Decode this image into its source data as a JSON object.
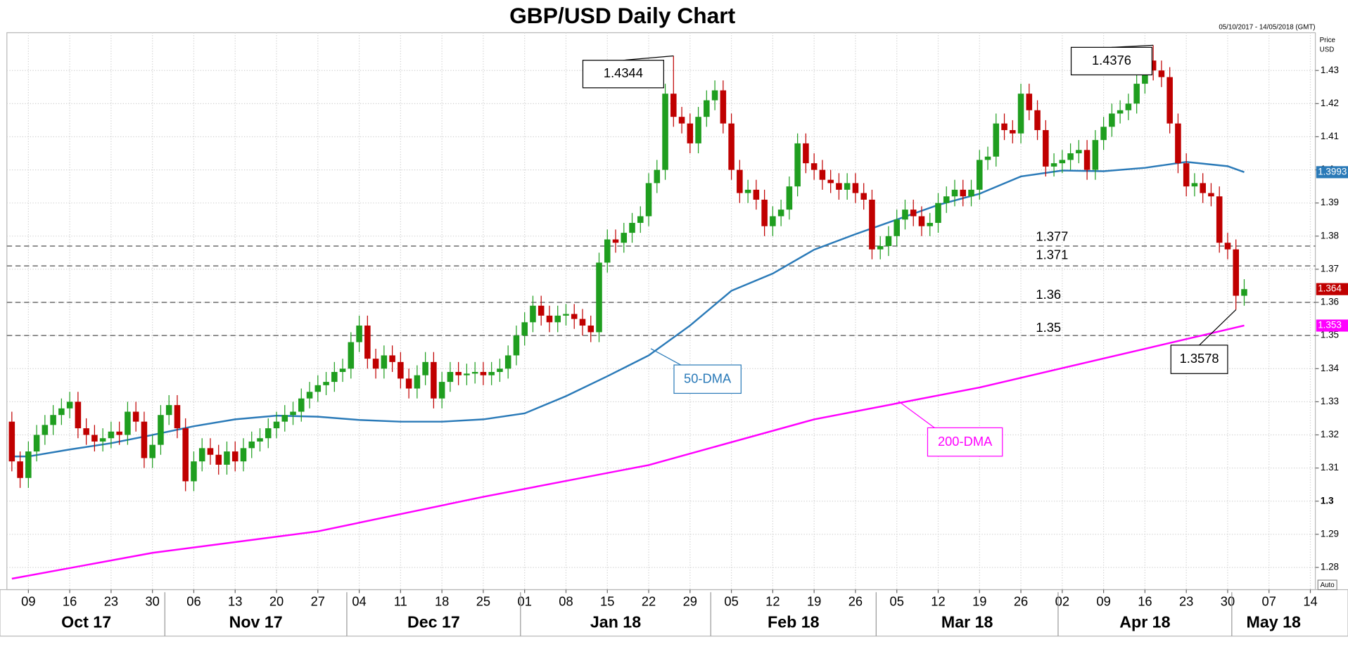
{
  "chart_data": {
    "type": "candlestick",
    "title": "GBP/USD Daily Chart",
    "range_label": "05/10/2017 - 14/05/2018 (GMT)",
    "y_axis_label": [
      "Price",
      "USD"
    ],
    "scale_label": "Auto",
    "up_color": "#1f9e1f",
    "down_color": "#c00000",
    "dates": [
      "2017-10-05",
      "2017-10-06",
      "2017-10-09",
      "2017-10-10",
      "2017-10-11",
      "2017-10-12",
      "2017-10-13",
      "2017-10-16",
      "2017-10-17",
      "2017-10-18",
      "2017-10-19",
      "2017-10-20",
      "2017-10-23",
      "2017-10-24",
      "2017-10-25",
      "2017-10-26",
      "2017-10-27",
      "2017-10-30",
      "2017-10-31",
      "2017-11-01",
      "2017-11-02",
      "2017-11-03",
      "2017-11-06",
      "2017-11-07",
      "2017-11-08",
      "2017-11-09",
      "2017-11-10",
      "2017-11-13",
      "2017-11-14",
      "2017-11-15",
      "2017-11-16",
      "2017-11-17",
      "2017-11-20",
      "2017-11-21",
      "2017-11-22",
      "2017-11-23",
      "2017-11-24",
      "2017-11-27",
      "2017-11-28",
      "2017-11-29",
      "2017-11-30",
      "2017-12-01",
      "2017-12-04",
      "2017-12-05",
      "2017-12-06",
      "2017-12-07",
      "2017-12-08",
      "2017-12-11",
      "2017-12-12",
      "2017-12-13",
      "2017-12-14",
      "2017-12-15",
      "2017-12-18",
      "2017-12-19",
      "2017-12-20",
      "2017-12-21",
      "2017-12-22",
      "2017-12-25",
      "2017-12-26",
      "2017-12-27",
      "2017-12-28",
      "2017-12-29",
      "2018-01-01",
      "2018-01-02",
      "2018-01-03",
      "2018-01-04",
      "2018-01-05",
      "2018-01-08",
      "2018-01-09",
      "2018-01-10",
      "2018-01-11",
      "2018-01-12",
      "2018-01-15",
      "2018-01-16",
      "2018-01-17",
      "2018-01-18",
      "2018-01-19",
      "2018-01-22",
      "2018-01-23",
      "2018-01-24",
      "2018-01-25",
      "2018-01-26",
      "2018-01-29",
      "2018-01-30",
      "2018-01-31",
      "2018-02-01",
      "2018-02-02",
      "2018-02-05",
      "2018-02-06",
      "2018-02-07",
      "2018-02-08",
      "2018-02-09",
      "2018-02-12",
      "2018-02-13",
      "2018-02-14",
      "2018-02-15",
      "2018-02-16",
      "2018-02-19",
      "2018-02-20",
      "2018-02-21",
      "2018-02-22",
      "2018-02-23",
      "2018-02-26",
      "2018-02-27",
      "2018-02-28",
      "2018-03-01",
      "2018-03-02",
      "2018-03-05",
      "2018-03-06",
      "2018-03-07",
      "2018-03-08",
      "2018-03-09",
      "2018-03-12",
      "2018-03-13",
      "2018-03-14",
      "2018-03-15",
      "2018-03-16",
      "2018-03-19",
      "2018-03-20",
      "2018-03-21",
      "2018-03-22",
      "2018-03-23",
      "2018-03-26",
      "2018-03-27",
      "2018-03-28",
      "2018-03-29",
      "2018-03-30",
      "2018-04-02",
      "2018-04-03",
      "2018-04-04",
      "2018-04-05",
      "2018-04-06",
      "2018-04-09",
      "2018-04-10",
      "2018-04-11",
      "2018-04-12",
      "2018-04-13",
      "2018-04-16",
      "2018-04-17",
      "2018-04-18",
      "2018-04-19",
      "2018-04-20",
      "2018-04-23",
      "2018-04-24",
      "2018-04-25",
      "2018-04-26",
      "2018-04-27",
      "2018-04-30",
      "2018-05-01",
      "2018-05-02"
    ],
    "open": [
      1.324,
      1.312,
      1.307,
      1.315,
      1.32,
      1.323,
      1.326,
      1.328,
      1.33,
      1.322,
      1.32,
      1.318,
      1.319,
      1.321,
      1.32,
      1.327,
      1.324,
      1.313,
      1.317,
      1.326,
      1.329,
      1.322,
      1.306,
      1.312,
      1.316,
      1.314,
      1.311,
      1.315,
      1.312,
      1.316,
      1.318,
      1.319,
      1.322,
      1.324,
      1.326,
      1.327,
      1.331,
      1.333,
      1.335,
      1.336,
      1.339,
      1.34,
      1.348,
      1.353,
      1.343,
      1.34,
      1.344,
      1.342,
      1.337,
      1.334,
      1.338,
      1.342,
      1.331,
      1.336,
      1.339,
      1.338,
      1.3385,
      1.339,
      1.338,
      1.339,
      1.34,
      1.344,
      1.35,
      1.354,
      1.359,
      1.356,
      1.354,
      1.356,
      1.3565,
      1.355,
      1.353,
      1.351,
      1.372,
      1.379,
      1.378,
      1.381,
      1.384,
      1.386,
      1.396,
      1.4,
      1.423,
      1.416,
      1.414,
      1.408,
      1.416,
      1.421,
      1.424,
      1.414,
      1.4,
      1.393,
      1.394,
      1.391,
      1.383,
      1.386,
      1.388,
      1.395,
      1.408,
      1.402,
      1.4,
      1.397,
      1.396,
      1.394,
      1.396,
      1.393,
      1.391,
      1.376,
      1.377,
      1.38,
      1.385,
      1.388,
      1.386,
      1.383,
      1.384,
      1.39,
      1.392,
      1.394,
      1.392,
      1.394,
      1.403,
      1.404,
      1.414,
      1.412,
      1.411,
      1.423,
      1.418,
      1.412,
      1.401,
      1.402,
      1.403,
      1.405,
      1.406,
      1.4,
      1.409,
      1.413,
      1.417,
      1.418,
      1.42,
      1.426,
      1.433,
      1.43,
      1.428,
      1.414,
      1.402,
      1.395,
      1.396,
      1.393,
      1.392,
      1.378,
      1.376,
      1.362
    ],
    "high": [
      1.327,
      1.315,
      1.318,
      1.323,
      1.326,
      1.329,
      1.331,
      1.333,
      1.333,
      1.325,
      1.323,
      1.322,
      1.324,
      1.324,
      1.33,
      1.33,
      1.327,
      1.32,
      1.329,
      1.332,
      1.332,
      1.325,
      1.315,
      1.319,
      1.319,
      1.317,
      1.318,
      1.318,
      1.319,
      1.321,
      1.322,
      1.325,
      1.327,
      1.329,
      1.33,
      1.334,
      1.336,
      1.338,
      1.339,
      1.342,
      1.343,
      1.351,
      1.356,
      1.356,
      1.346,
      1.347,
      1.347,
      1.345,
      1.34,
      1.341,
      1.345,
      1.345,
      1.339,
      1.342,
      1.342,
      1.3415,
      1.342,
      1.342,
      1.342,
      1.343,
      1.347,
      1.353,
      1.357,
      1.362,
      1.362,
      1.359,
      1.359,
      1.3595,
      1.3595,
      1.358,
      1.356,
      1.375,
      1.382,
      1.382,
      1.384,
      1.387,
      1.389,
      1.399,
      1.403,
      1.426,
      1.4344,
      1.419,
      1.417,
      1.419,
      1.424,
      1.427,
      1.427,
      1.417,
      1.403,
      1.397,
      1.397,
      1.394,
      1.389,
      1.391,
      1.398,
      1.411,
      1.411,
      1.405,
      1.403,
      1.4,
      1.399,
      1.399,
      1.399,
      1.396,
      1.394,
      1.38,
      1.383,
      1.388,
      1.391,
      1.391,
      1.389,
      1.387,
      1.393,
      1.395,
      1.397,
      1.397,
      1.397,
      1.406,
      1.407,
      1.417,
      1.417,
      1.415,
      1.426,
      1.426,
      1.421,
      1.415,
      1.405,
      1.406,
      1.408,
      1.409,
      1.409,
      1.412,
      1.416,
      1.42,
      1.421,
      1.423,
      1.429,
      1.436,
      1.4376,
      1.433,
      1.431,
      1.417,
      1.405,
      1.399,
      1.399,
      1.396,
      1.395,
      1.381,
      1.379,
      1.367
    ],
    "low": [
      1.309,
      1.304,
      1.304,
      1.312,
      1.317,
      1.32,
      1.323,
      1.325,
      1.319,
      1.317,
      1.315,
      1.315,
      1.316,
      1.317,
      1.317,
      1.321,
      1.31,
      1.31,
      1.314,
      1.323,
      1.319,
      1.303,
      1.303,
      1.309,
      1.311,
      1.308,
      1.308,
      1.309,
      1.309,
      1.313,
      1.315,
      1.316,
      1.319,
      1.321,
      1.323,
      1.324,
      1.328,
      1.33,
      1.332,
      1.333,
      1.336,
      1.337,
      1.345,
      1.34,
      1.337,
      1.337,
      1.339,
      1.334,
      1.331,
      1.331,
      1.335,
      1.328,
      1.328,
      1.333,
      1.335,
      1.335,
      1.3355,
      1.335,
      1.335,
      1.336,
      1.337,
      1.341,
      1.347,
      1.351,
      1.353,
      1.351,
      1.351,
      1.353,
      1.352,
      1.35,
      1.348,
      1.348,
      1.369,
      1.375,
      1.375,
      1.378,
      1.381,
      1.383,
      1.393,
      1.397,
      1.413,
      1.411,
      1.405,
      1.405,
      1.413,
      1.418,
      1.411,
      1.397,
      1.39,
      1.39,
      1.388,
      1.38,
      1.38,
      1.383,
      1.385,
      1.392,
      1.399,
      1.397,
      1.394,
      1.393,
      1.391,
      1.391,
      1.39,
      1.388,
      1.373,
      1.373,
      1.374,
      1.377,
      1.382,
      1.383,
      1.38,
      1.38,
      1.381,
      1.387,
      1.389,
      1.389,
      1.389,
      1.391,
      1.4,
      1.401,
      1.409,
      1.408,
      1.408,
      1.415,
      1.409,
      1.398,
      1.398,
      1.399,
      1.4,
      1.402,
      1.397,
      1.397,
      1.406,
      1.41,
      1.414,
      1.415,
      1.417,
      1.423,
      1.427,
      1.425,
      1.411,
      1.399,
      1.392,
      1.392,
      1.39,
      1.389,
      1.375,
      1.373,
      1.3578,
      1.359
    ],
    "close": [
      1.312,
      1.307,
      1.315,
      1.32,
      1.323,
      1.326,
      1.328,
      1.33,
      1.322,
      1.32,
      1.318,
      1.319,
      1.321,
      1.32,
      1.327,
      1.324,
      1.313,
      1.317,
      1.326,
      1.329,
      1.322,
      1.306,
      1.312,
      1.316,
      1.314,
      1.311,
      1.315,
      1.312,
      1.316,
      1.318,
      1.319,
      1.322,
      1.324,
      1.326,
      1.327,
      1.331,
      1.333,
      1.335,
      1.336,
      1.339,
      1.34,
      1.348,
      1.353,
      1.343,
      1.34,
      1.344,
      1.342,
      1.337,
      1.334,
      1.338,
      1.342,
      1.331,
      1.336,
      1.339,
      1.338,
      1.3385,
      1.339,
      1.338,
      1.339,
      1.34,
      1.344,
      1.35,
      1.354,
      1.359,
      1.356,
      1.354,
      1.356,
      1.3565,
      1.355,
      1.353,
      1.351,
      1.372,
      1.379,
      1.378,
      1.381,
      1.384,
      1.386,
      1.396,
      1.4,
      1.423,
      1.416,
      1.414,
      1.408,
      1.416,
      1.421,
      1.424,
      1.414,
      1.4,
      1.393,
      1.394,
      1.391,
      1.383,
      1.386,
      1.388,
      1.395,
      1.408,
      1.402,
      1.4,
      1.397,
      1.396,
      1.394,
      1.396,
      1.393,
      1.391,
      1.376,
      1.377,
      1.38,
      1.385,
      1.388,
      1.386,
      1.383,
      1.384,
      1.39,
      1.392,
      1.394,
      1.392,
      1.394,
      1.403,
      1.404,
      1.414,
      1.412,
      1.411,
      1.423,
      1.418,
      1.412,
      1.401,
      1.402,
      1.403,
      1.405,
      1.406,
      1.4,
      1.409,
      1.413,
      1.417,
      1.418,
      1.42,
      1.426,
      1.433,
      1.43,
      1.428,
      1.414,
      1.402,
      1.395,
      1.396,
      1.393,
      1.392,
      1.378,
      1.376,
      1.362,
      1.364
    ],
    "series": [
      {
        "name": "50-DMA",
        "color": "#2a7ab8",
        "x": [
          "2017-10-05",
          "2017-10-09",
          "2017-10-16",
          "2017-10-23",
          "2017-10-30",
          "2017-11-06",
          "2017-11-13",
          "2017-11-20",
          "2017-11-27",
          "2017-12-04",
          "2017-12-11",
          "2017-12-18",
          "2017-12-25",
          "2018-01-01",
          "2018-01-08",
          "2018-01-15",
          "2018-01-22",
          "2018-01-29",
          "2018-02-05",
          "2018-02-12",
          "2018-02-19",
          "2018-02-26",
          "2018-03-05",
          "2018-03-12",
          "2018-03-19",
          "2018-03-26",
          "2018-04-02",
          "2018-04-09",
          "2018-04-16",
          "2018-04-23",
          "2018-04-30",
          "2018-05-02"
        ],
        "values": [
          1.3135,
          1.3135,
          1.3156,
          1.3175,
          1.32,
          1.3226,
          1.3247,
          1.3258,
          1.3255,
          1.3245,
          1.324,
          1.324,
          1.3247,
          1.3265,
          1.3317,
          1.3377,
          1.344,
          1.353,
          1.3635,
          1.3687,
          1.3759,
          1.3806,
          1.385,
          1.3894,
          1.3928,
          1.398,
          1.3998,
          1.3996,
          1.4006,
          1.4024,
          1.4011,
          1.3993
        ]
      },
      {
        "name": "200-DMA",
        "color": "#ff00ff",
        "x": [
          "2017-10-05",
          "2017-10-30",
          "2017-11-27",
          "2017-12-25",
          "2018-01-22",
          "2018-02-19",
          "2018-03-19",
          "2018-04-16",
          "2018-05-02"
        ],
        "values": [
          1.2766,
          1.2844,
          1.2909,
          1.3013,
          1.3109,
          1.3247,
          1.3343,
          1.346,
          1.353
        ]
      }
    ],
    "levels": [
      1.377,
      1.371,
      1.36,
      1.35
    ],
    "xlim": [
      "2017-10-05",
      "2018-05-14"
    ],
    "xticks": [
      {
        "value": "2017-10-09",
        "label": "09"
      },
      {
        "value": "2017-10-16",
        "label": "16"
      },
      {
        "value": "2017-10-23",
        "label": "23"
      },
      {
        "value": "2017-10-30",
        "label": "30"
      },
      {
        "value": "2017-11-06",
        "label": "06"
      },
      {
        "value": "2017-11-13",
        "label": "13"
      },
      {
        "value": "2017-11-20",
        "label": "20"
      },
      {
        "value": "2017-11-27",
        "label": "27"
      },
      {
        "value": "2017-12-04",
        "label": "04"
      },
      {
        "value": "2017-12-11",
        "label": "11"
      },
      {
        "value": "2017-12-18",
        "label": "18"
      },
      {
        "value": "2017-12-25",
        "label": "25"
      },
      {
        "value": "2018-01-01",
        "label": "01"
      },
      {
        "value": "2018-01-08",
        "label": "08"
      },
      {
        "value": "2018-01-15",
        "label": "15"
      },
      {
        "value": "2018-01-22",
        "label": "22"
      },
      {
        "value": "2018-01-29",
        "label": "29"
      },
      {
        "value": "2018-02-05",
        "label": "05"
      },
      {
        "value": "2018-02-12",
        "label": "12"
      },
      {
        "value": "2018-02-19",
        "label": "19"
      },
      {
        "value": "2018-02-26",
        "label": "26"
      },
      {
        "value": "2018-03-05",
        "label": "05"
      },
      {
        "value": "2018-03-12",
        "label": "12"
      },
      {
        "value": "2018-03-19",
        "label": "19"
      },
      {
        "value": "2018-03-26",
        "label": "26"
      },
      {
        "value": "2018-04-02",
        "label": "02"
      },
      {
        "value": "2018-04-09",
        "label": "09"
      },
      {
        "value": "2018-04-16",
        "label": "16"
      },
      {
        "value": "2018-04-23",
        "label": "23"
      },
      {
        "value": "2018-04-30",
        "label": "30"
      },
      {
        "value": "2018-05-07",
        "label": "07"
      },
      {
        "value": "2018-05-14",
        "label": "14"
      }
    ],
    "months": [
      {
        "value": "2017-10-01",
        "label": "Oct 17"
      },
      {
        "value": "2017-11-01",
        "label": "Nov 17"
      },
      {
        "value": "2017-12-01",
        "label": "Dec 17"
      },
      {
        "value": "2018-01-01",
        "label": "Jan 18"
      },
      {
        "value": "2018-02-01",
        "label": "Feb 18"
      },
      {
        "value": "2018-03-01",
        "label": "Mar 18"
      },
      {
        "value": "2018-04-01",
        "label": "Apr 18"
      },
      {
        "value": "2018-05-01",
        "label": "May 18"
      }
    ],
    "ylim": [
      1.2733,
      1.4414
    ],
    "yticks": [
      1.28,
      1.29,
      1.3,
      1.31,
      1.32,
      1.33,
      1.34,
      1.35,
      1.36,
      1.37,
      1.38,
      1.39,
      1.4,
      1.41,
      1.42,
      1.43
    ],
    "grid": true
  }
}
